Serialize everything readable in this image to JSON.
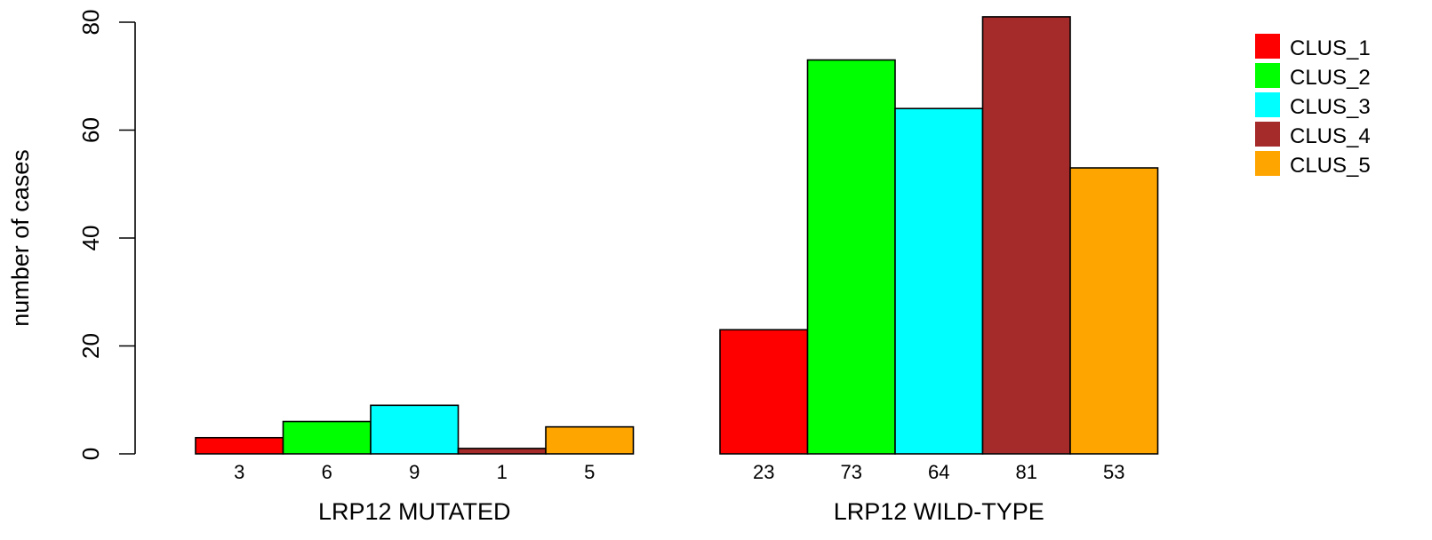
{
  "chart_data": {
    "type": "bar",
    "ylabel": "number of cases",
    "xlabel": "",
    "ylim": [
      0,
      80
    ],
    "yticks": [
      "0",
      "20",
      "40",
      "60",
      "80"
    ],
    "groups": [
      "LRP12 MUTATED",
      "LRP12 WILD-TYPE"
    ],
    "series": [
      {
        "name": "CLUS_1",
        "color": "#ff0000",
        "values": [
          3,
          23
        ]
      },
      {
        "name": "CLUS_2",
        "color": "#00ff00",
        "values": [
          6,
          73
        ]
      },
      {
        "name": "CLUS_3",
        "color": "#00ffff",
        "values": [
          9,
          64
        ]
      },
      {
        "name": "CLUS_4",
        "color": "#a52a2a",
        "values": [
          1,
          81
        ]
      },
      {
        "name": "CLUS_5",
        "color": "#ffa500",
        "values": [
          5,
          53
        ]
      }
    ],
    "count_labels": [
      [
        "3",
        "6",
        "9",
        "1",
        "5"
      ],
      [
        "23",
        "73",
        "64",
        "81",
        "53"
      ]
    ],
    "legend_position": "top-right",
    "grid": false
  }
}
